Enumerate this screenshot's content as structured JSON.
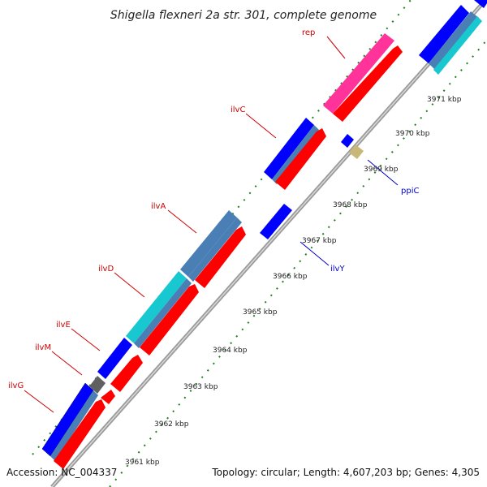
{
  "title": "Shigella flexneri 2a str. 301, complete genome",
  "footer": {
    "accession": "Accession: NC_004337",
    "topology": "Topology: circular; Length: 4,607,203 bp; Genes: 4,305"
  },
  "ticks": [
    "3961 kbp",
    "3962 kbp",
    "3963 kbp",
    "3964 kbp",
    "3965 kbp",
    "3966 kbp",
    "3967 kbp",
    "3968 kbp",
    "3969 kbp",
    "3970 kbp",
    "3971 kbp"
  ],
  "gene_labels": {
    "rep": "rep",
    "ilvC": "ilvC",
    "ilvA": "ilvA",
    "ilvD": "ilvD",
    "ilvE": "ilvE",
    "ilvM": "ilvM",
    "ilvG": "ilvG",
    "ppiC": "ppiC",
    "ilvY": "ilvY"
  },
  "colors": {
    "cds": "#ff0000",
    "gene_blue": "#0000ff",
    "steel": "#4a7fb5",
    "cyan": "#18c8d0",
    "pink": "#ff3399",
    "gray_gene": "#606060",
    "khaki": "#c8b878",
    "backbone": "#a0a0a0",
    "dots": "#208020",
    "label_red": "#cc0000",
    "label_blue": "#0000cc"
  }
}
